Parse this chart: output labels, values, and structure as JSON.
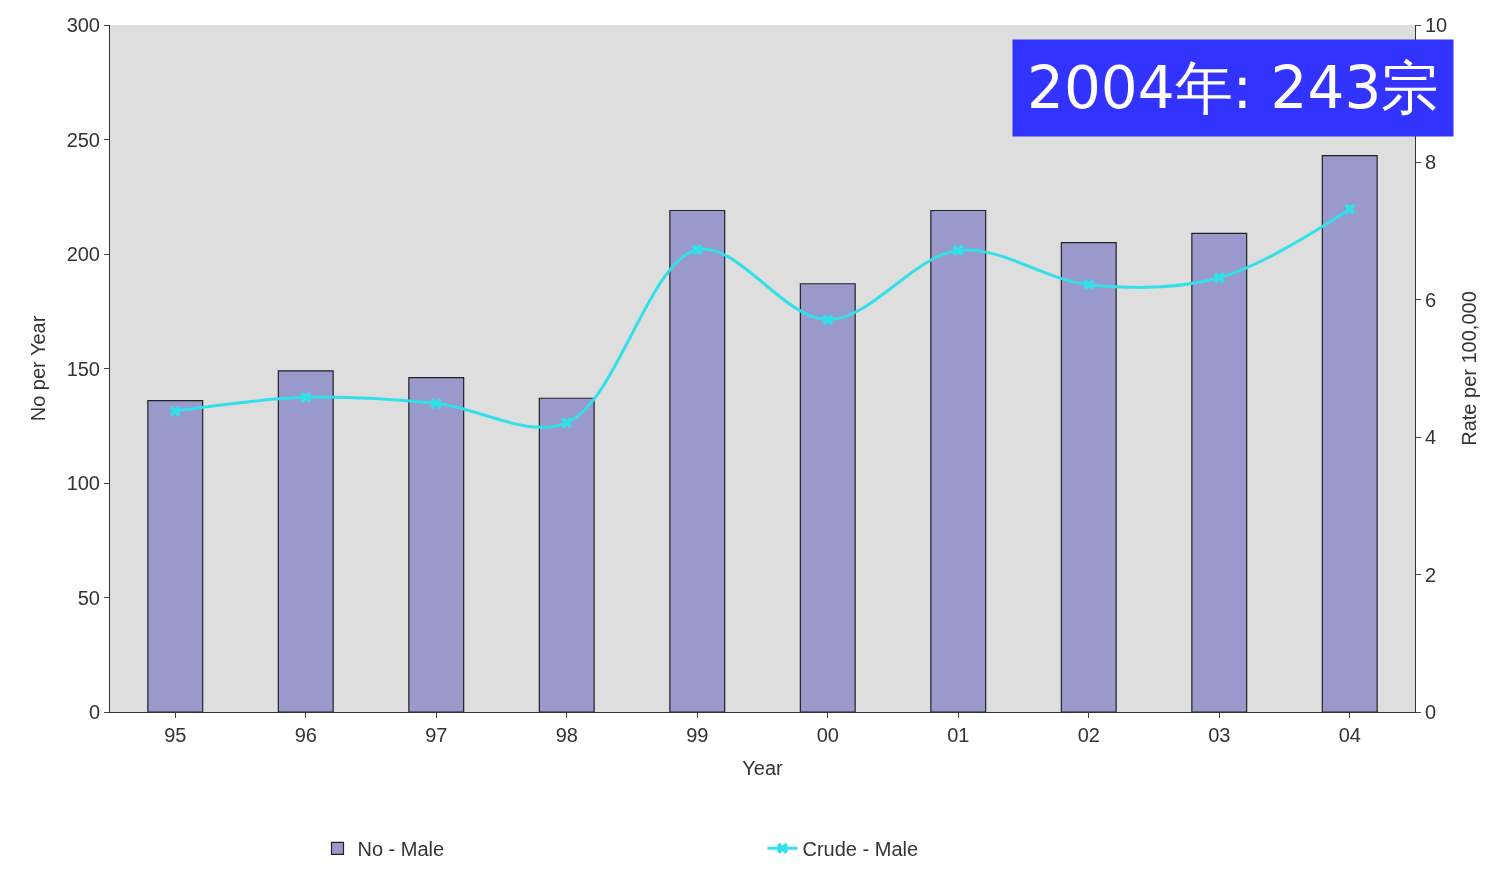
{
  "chart_data": {
    "type": "bar",
    "xlabel": "Year",
    "ylabel": "No per Year",
    "y2label": "Rate per 100,000",
    "categories": [
      "95",
      "96",
      "97",
      "98",
      "99",
      "00",
      "01",
      "02",
      "03",
      "04"
    ],
    "series": [
      {
        "name": "No - Male",
        "color": "#9999cc",
        "values": [
          136,
          149,
          146,
          137,
          219,
          187,
          219,
          205,
          209,
          243
        ]
      },
      {
        "name": "Crude - Male",
        "type": "line",
        "axis": "y2",
        "color": "#33e0e8",
        "marker": "cross",
        "values": [
          4.38,
          4.58,
          4.49,
          4.21,
          6.73,
          5.71,
          6.72,
          6.22,
          6.32,
          7.32
        ]
      }
    ],
    "ylim": [
      0,
      300
    ],
    "yticks": [
      0,
      50,
      100,
      150,
      200,
      250,
      300
    ],
    "y2lim": [
      0,
      10
    ],
    "y2ticks": [
      0,
      2,
      4,
      6,
      8,
      10
    ],
    "annotations": [
      "2004年: 243宗"
    ],
    "grid": false,
    "legend": "bottom"
  }
}
